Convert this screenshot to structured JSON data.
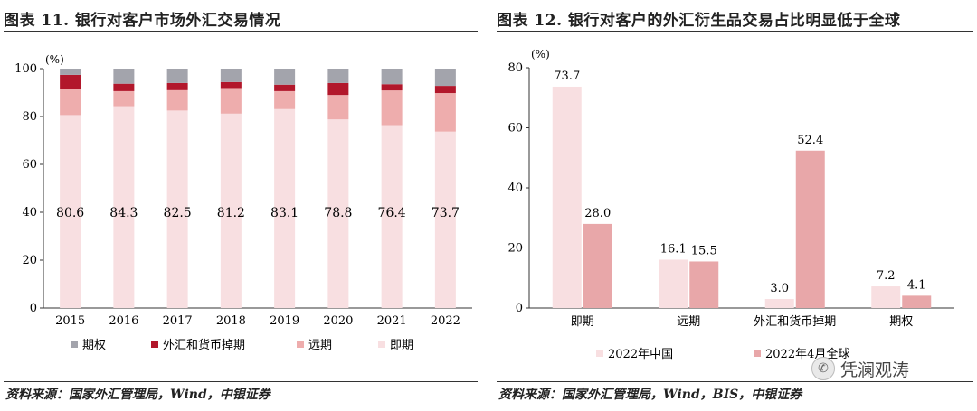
{
  "left": {
    "title": "图表 11. 银行对客户市场外汇交易情况",
    "source": "资料来源：国家外汇管理局，Wind，中银证券"
  },
  "right": {
    "title": "图表 12. 银行对客户的外汇衍生品交易占比明显低于全球",
    "source": "资料来源：国家外汇管理局，Wind，BIS，中银证券"
  },
  "watermark": {
    "text": "凭澜观涛",
    "icon": "wechat-icon"
  },
  "colors": {
    "spot": "#f8dfe1",
    "forward": "#eeadad",
    "swap": "#b2172b",
    "option": "#a3a4ac",
    "china": "#f8dfe1",
    "global": "#e8a7a9"
  },
  "chart_data": [
    {
      "type": "bar",
      "stacked": true,
      "ylabel": "(%)",
      "ylim": [
        0,
        100
      ],
      "yticks": [
        "0",
        "20",
        "40",
        "60",
        "80",
        "100"
      ],
      "categories": [
        "2015",
        "2016",
        "2017",
        "2018",
        "2019",
        "2020",
        "2021",
        "2022"
      ],
      "series": [
        {
          "name": "即期",
          "values": [
            80.6,
            84.3,
            82.5,
            81.2,
            83.1,
            78.8,
            76.4,
            73.7
          ],
          "labels": [
            "80.6",
            "84.3",
            "82.5",
            "81.2",
            "83.1",
            "78.8",
            "76.4",
            "73.7"
          ]
        },
        {
          "name": "远期",
          "values": [
            11.0,
            6.3,
            8.5,
            10.7,
            7.5,
            10.2,
            14.5,
            16.1
          ]
        },
        {
          "name": "外汇和货币掉期",
          "values": [
            5.8,
            3.1,
            3.0,
            2.5,
            2.7,
            5.0,
            2.6,
            3.0
          ]
        },
        {
          "name": "期权",
          "values": [
            2.6,
            6.3,
            6.0,
            5.6,
            6.7,
            6.0,
            6.5,
            7.2
          ]
        }
      ],
      "legend": [
        "期权",
        "外汇和货币掉期",
        "远期",
        "即期"
      ],
      "legend_position": "bottom",
      "grid": false
    },
    {
      "type": "bar",
      "ylabel": "(%)",
      "ylim": [
        0,
        80
      ],
      "yticks": [
        "0",
        "20",
        "40",
        "60",
        "80"
      ],
      "categories": [
        "即期",
        "远期",
        "外汇和货币掉期",
        "期权"
      ],
      "series": [
        {
          "name": "2022年中国",
          "values": [
            73.7,
            16.1,
            3.0,
            7.2
          ],
          "labels": [
            "73.7",
            "16.1",
            "3.0",
            "7.2"
          ]
        },
        {
          "name": "2022年4月全球",
          "values": [
            28.0,
            15.5,
            52.4,
            4.1
          ],
          "labels": [
            "28.0",
            "15.5",
            "52.4",
            "4.1"
          ]
        }
      ],
      "legend": [
        "2022年中国",
        "2022年4月全球"
      ],
      "legend_position": "bottom",
      "grid": false
    }
  ]
}
